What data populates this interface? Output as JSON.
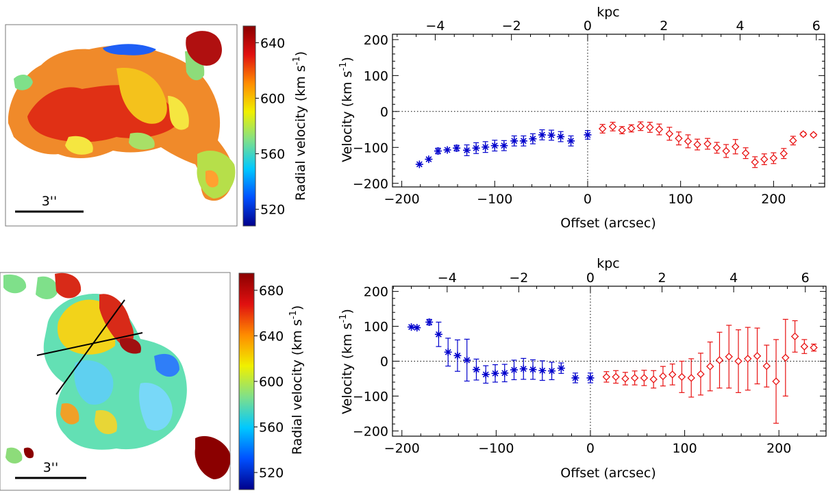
{
  "figure": {
    "maps": [
      {
        "scale_bar_label": "3''",
        "colorbar": {
          "label": "Radial velocity (km s",
          "label_sup": "-1",
          "label_close": ")",
          "range": [
            508,
            652
          ],
          "ticks": [
            520,
            560,
            600,
            640
          ],
          "tick_labels": [
            "520",
            "560",
            "600",
            "640"
          ],
          "colors": [
            "#00008b",
            "#0050ff",
            "#00c8ff",
            "#7fe08a",
            "#f0f000",
            "#ff8c00",
            "#e01010",
            "#8b0000"
          ]
        },
        "has_slit_lines": false
      },
      {
        "scale_bar_label": "3''",
        "colorbar": {
          "label": "Radial velocity (km s",
          "label_sup": "-1",
          "label_close": ")",
          "range": [
            505,
            695
          ],
          "ticks": [
            520,
            560,
            600,
            640,
            680
          ],
          "tick_labels": [
            "520",
            "560",
            "600",
            "640",
            "680"
          ],
          "colors": [
            "#00008b",
            "#0050ff",
            "#00c8ff",
            "#7fe08a",
            "#f0f000",
            "#ff8c00",
            "#e01010",
            "#8b0000"
          ]
        },
        "has_slit_lines": true
      }
    ]
  },
  "chart_data": [
    {
      "type": "scatter",
      "xlabel": "Offset (arcsec)",
      "ylabel": "Velocity (km s",
      "ylabel_sup": "-1",
      "ylabel_close": ")",
      "top_axis_label": "kpc",
      "xlim": [
        -210,
        255
      ],
      "ylim": [
        -210,
        215
      ],
      "xticks": [
        -200,
        -100,
        0,
        100,
        200
      ],
      "xtick_labels": [
        "−200",
        "−100",
        "0",
        "100",
        "200"
      ],
      "yticks": [
        -200,
        -100,
        0,
        100,
        200
      ],
      "ytick_labels": [
        "−200",
        "−100",
        "0",
        "100",
        "200"
      ],
      "top_ticks_kpc": [
        -4,
        -2,
        0,
        2,
        4,
        6
      ],
      "top_tick_labels": [
        "−4",
        "−2",
        "0",
        "2",
        "4",
        "6"
      ],
      "arcsec_per_kpc": 41,
      "series": [
        {
          "marker": "asterisk",
          "color": "#0000cc",
          "x": [
            -181,
            -171,
            -161,
            -151,
            -141,
            -130,
            -120,
            -110,
            -100,
            -90,
            -79,
            -69,
            -59,
            -49,
            -39,
            -29,
            -18,
            0
          ],
          "y": [
            -147,
            -133,
            -110,
            -107,
            -102,
            -108,
            -102,
            -99,
            -95,
            -95,
            -82,
            -82,
            -76,
            -65,
            -66,
            -70,
            -82,
            -65
          ],
          "err": [
            0,
            0,
            8,
            0,
            8,
            15,
            15,
            15,
            15,
            14,
            14,
            14,
            14,
            14,
            14,
            14,
            14,
            12
          ]
        },
        {
          "marker": "diamond",
          "color": "#e81010",
          "x": [
            16,
            27,
            37,
            47,
            57,
            67,
            77,
            88,
            98,
            108,
            118,
            129,
            139,
            149,
            159,
            170,
            180,
            190,
            200,
            211,
            221,
            232,
            243
          ],
          "y": [
            -48,
            -42,
            -52,
            -47,
            -41,
            -44,
            -50,
            -62,
            -75,
            -83,
            -92,
            -90,
            -101,
            -110,
            -98,
            -116,
            -141,
            -133,
            -130,
            -117,
            -81,
            -63,
            -65
          ],
          "err": [
            12,
            12,
            10,
            10,
            12,
            14,
            15,
            18,
            18,
            18,
            15,
            15,
            15,
            18,
            20,
            15,
            15,
            15,
            15,
            14,
            12,
            5,
            4
          ]
        }
      ]
    },
    {
      "type": "scatter",
      "xlabel": "Offset (arcsec)",
      "ylabel": "Velocity (km s",
      "ylabel_sup": "-1",
      "ylabel_close": ")",
      "top_axis_label": "kpc",
      "xlim": [
        -210,
        250
      ],
      "ylim": [
        -215,
        215
      ],
      "xticks": [
        -200,
        -100,
        0,
        100,
        200
      ],
      "xtick_labels": [
        "−200",
        "−100",
        "0",
        "100",
        "200"
      ],
      "yticks": [
        -200,
        -100,
        0,
        100,
        200
      ],
      "ytick_labels": [
        "−200",
        "−100",
        "0",
        "100",
        "200"
      ],
      "top_ticks_kpc": [
        -4,
        -2,
        0,
        2,
        4,
        6
      ],
      "top_tick_labels": [
        "−4",
        "−2",
        "0",
        "2",
        "4",
        "6"
      ],
      "arcsec_per_kpc": 38,
      "series": [
        {
          "marker": "asterisk",
          "color": "#0000cc",
          "x": [
            -190,
            -184,
            -171,
            -161,
            -151,
            -141,
            -131,
            -121,
            -111,
            -101,
            -91,
            -81,
            -71,
            -61,
            -51,
            -41,
            -31,
            -16,
            0
          ],
          "y": [
            98,
            96,
            112,
            77,
            26,
            16,
            3,
            -24,
            -38,
            -35,
            -34,
            -25,
            -22,
            -24,
            -27,
            -28,
            -20,
            -48,
            -48
          ],
          "err": [
            0,
            0,
            8,
            35,
            40,
            45,
            60,
            30,
            25,
            25,
            25,
            28,
            30,
            28,
            28,
            25,
            15,
            14,
            14
          ]
        },
        {
          "marker": "diamond",
          "color": "#e81010",
          "x": [
            17,
            27,
            37,
            47,
            57,
            67,
            77,
            87,
            97,
            107,
            117,
            127,
            137,
            147,
            157,
            167,
            177,
            187,
            197,
            207,
            217,
            227,
            237
          ],
          "y": [
            -45,
            -45,
            -50,
            -48,
            -48,
            -52,
            -43,
            -38,
            -45,
            -48,
            -37,
            -15,
            3,
            13,
            0,
            7,
            15,
            -14,
            -58,
            10,
            71,
            42,
            39
          ],
          "err": [
            15,
            18,
            18,
            20,
            22,
            25,
            28,
            30,
            45,
            55,
            60,
            70,
            80,
            90,
            90,
            90,
            80,
            60,
            120,
            110,
            45,
            20,
            10
          ]
        }
      ]
    }
  ]
}
